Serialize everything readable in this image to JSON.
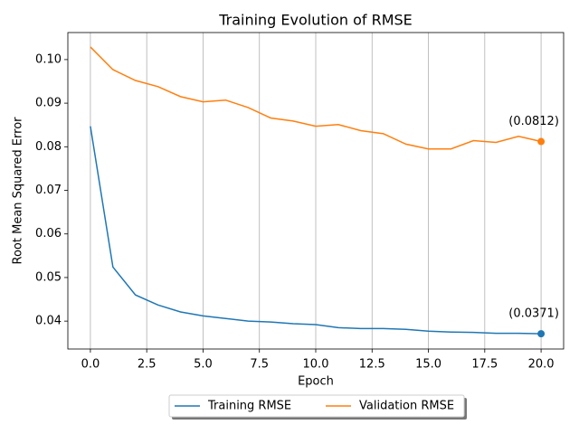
{
  "chart_data": {
    "type": "line",
    "title": "Training Evolution of RMSE",
    "x_label": "Epoch",
    "y_label": "Root Mean Squared Error",
    "x": [
      0,
      1,
      2,
      3,
      4,
      5,
      6,
      7,
      8,
      9,
      10,
      11,
      12,
      13,
      14,
      15,
      16,
      17,
      18,
      19,
      20
    ],
    "series": [
      {
        "name": "Training RMSE",
        "color": "#1f77b4",
        "values": [
          0.0847,
          0.0524,
          0.046,
          0.0437,
          0.0421,
          0.0412,
          0.0406,
          0.04,
          0.0398,
          0.0394,
          0.0392,
          0.0385,
          0.0383,
          0.0383,
          0.0381,
          0.0377,
          0.0375,
          0.0374,
          0.0372,
          0.0372,
          0.0371
        ],
        "value_labels": [
          null,
          null,
          null,
          null,
          null,
          null,
          null,
          null,
          null,
          null,
          null,
          null,
          null,
          null,
          null,
          null,
          null,
          null,
          null,
          null,
          "(0.0371)"
        ]
      },
      {
        "name": "Validation RMSE",
        "color": "#ff7f0e",
        "values": [
          0.1029,
          0.0977,
          0.0952,
          0.0938,
          0.0915,
          0.0903,
          0.0907,
          0.089,
          0.0866,
          0.0859,
          0.0847,
          0.0851,
          0.0837,
          0.083,
          0.0806,
          0.0795,
          0.0795,
          0.0814,
          0.081,
          0.0824,
          0.0812
        ],
        "value_labels": [
          null,
          null,
          null,
          null,
          null,
          null,
          null,
          null,
          null,
          null,
          null,
          null,
          null,
          null,
          null,
          null,
          null,
          null,
          null,
          null,
          "(0.0812)"
        ]
      }
    ],
    "xlim": [
      -1,
      21
    ],
    "ylim": [
      0.0336,
      0.1062
    ],
    "xticks": [
      {
        "value": 0,
        "label": "0.0"
      },
      2.5,
      {
        "value": 5,
        "label": "5.0"
      },
      7.5,
      {
        "value": 10,
        "label": "10.0"
      },
      12.5,
      {
        "value": 15,
        "label": "15.0"
      },
      17.5,
      {
        "value": 20,
        "label": "20.0"
      }
    ],
    "yticks": [
      0.04,
      0.05,
      0.06,
      0.07,
      0.08,
      0.09,
      {
        "value": 0.1,
        "label": "0.10"
      }
    ],
    "grid": "x",
    "legend_position": "below"
  }
}
